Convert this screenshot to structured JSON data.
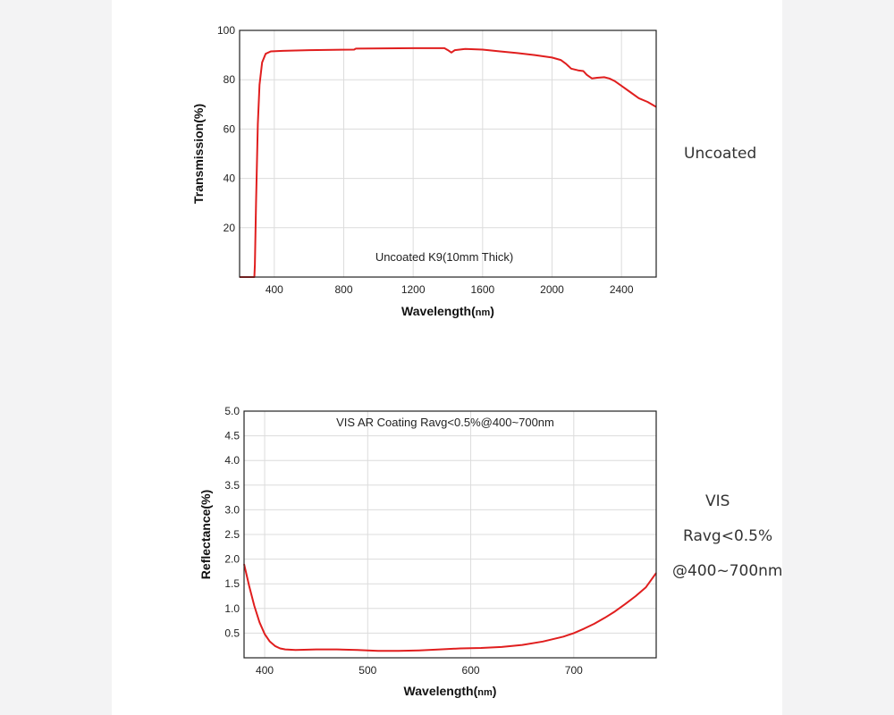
{
  "chart_data": [
    {
      "type": "line",
      "title": "Uncoated K9(10mm Thick)",
      "xlabel": "Wavelength(",
      "xlabel_unit": "nm",
      "xlabel_close": ")",
      "ylabel": "Transmission(%)",
      "xlim": [
        200,
        2600
      ],
      "ylim": [
        0,
        100
      ],
      "x_ticks": [
        400,
        800,
        1200,
        1600,
        2000,
        2400
      ],
      "y_ticks": [
        20,
        40,
        60,
        80,
        100
      ],
      "grid": true,
      "line_color": "#e01e1e",
      "series": [
        {
          "name": "Uncoated K9",
          "points": [
            [
              200,
              0
            ],
            [
              285,
              0
            ],
            [
              288,
              5
            ],
            [
              295,
              30
            ],
            [
              305,
              62
            ],
            [
              315,
              78
            ],
            [
              330,
              87
            ],
            [
              350,
              90.5
            ],
            [
              380,
              91.5
            ],
            [
              450,
              91.7
            ],
            [
              600,
              92
            ],
            [
              860,
              92.2
            ],
            [
              870,
              92.6
            ],
            [
              1200,
              92.8
            ],
            [
              1380,
              92.8
            ],
            [
              1400,
              92
            ],
            [
              1420,
              91
            ],
            [
              1440,
              92
            ],
            [
              1500,
              92.5
            ],
            [
              1600,
              92.2
            ],
            [
              1700,
              91.5
            ],
            [
              1800,
              90.8
            ],
            [
              1900,
              90
            ],
            [
              2000,
              89
            ],
            [
              2050,
              88
            ],
            [
              2080,
              86.5
            ],
            [
              2110,
              84.5
            ],
            [
              2150,
              83.8
            ],
            [
              2180,
              83.5
            ],
            [
              2200,
              82
            ],
            [
              2230,
              80.5
            ],
            [
              2260,
              80.8
            ],
            [
              2300,
              81
            ],
            [
              2330,
              80.5
            ],
            [
              2360,
              79.5
            ],
            [
              2400,
              77.5
            ],
            [
              2450,
              75
            ],
            [
              2500,
              72.5
            ],
            [
              2550,
              71
            ],
            [
              2600,
              69
            ]
          ]
        }
      ]
    },
    {
      "type": "line",
      "title": "VIS AR Coating Ravg<0.5%@400~700nm",
      "xlabel": "Wavelength(",
      "xlabel_unit": "nm",
      "xlabel_close": ")",
      "ylabel": "Reflectance(%)",
      "xlim": [
        380,
        780
      ],
      "ylim": [
        0,
        5.0
      ],
      "x_ticks": [
        400,
        500,
        600,
        700
      ],
      "y_ticks": [
        "0.5",
        "1.0",
        "1.5",
        "2.0",
        "2.5",
        "3.0",
        "3.5",
        "4.0",
        "4.5",
        "5.0"
      ],
      "grid": true,
      "line_color": "#e01e1e",
      "series": [
        {
          "name": "VIS AR Coating",
          "points": [
            [
              380,
              1.9
            ],
            [
              385,
              1.45
            ],
            [
              390,
              1.05
            ],
            [
              395,
              0.72
            ],
            [
              400,
              0.48
            ],
            [
              405,
              0.33
            ],
            [
              410,
              0.24
            ],
            [
              415,
              0.19
            ],
            [
              420,
              0.17
            ],
            [
              430,
              0.16
            ],
            [
              450,
              0.17
            ],
            [
              470,
              0.17
            ],
            [
              490,
              0.16
            ],
            [
              510,
              0.14
            ],
            [
              530,
              0.14
            ],
            [
              550,
              0.15
            ],
            [
              570,
              0.17
            ],
            [
              590,
              0.19
            ],
            [
              610,
              0.2
            ],
            [
              630,
              0.22
            ],
            [
              650,
              0.26
            ],
            [
              670,
              0.33
            ],
            [
              690,
              0.43
            ],
            [
              700,
              0.5
            ],
            [
              710,
              0.59
            ],
            [
              720,
              0.69
            ],
            [
              730,
              0.81
            ],
            [
              740,
              0.94
            ],
            [
              750,
              1.09
            ],
            [
              760,
              1.25
            ],
            [
              770,
              1.43
            ],
            [
              780,
              1.72
            ]
          ]
        }
      ]
    }
  ],
  "side_labels": {
    "chart1": "Uncoated",
    "chart2_line1": "VIS",
    "chart2_line2": "Ravg<0.5%",
    "chart2_line3": "@400~700nm"
  }
}
